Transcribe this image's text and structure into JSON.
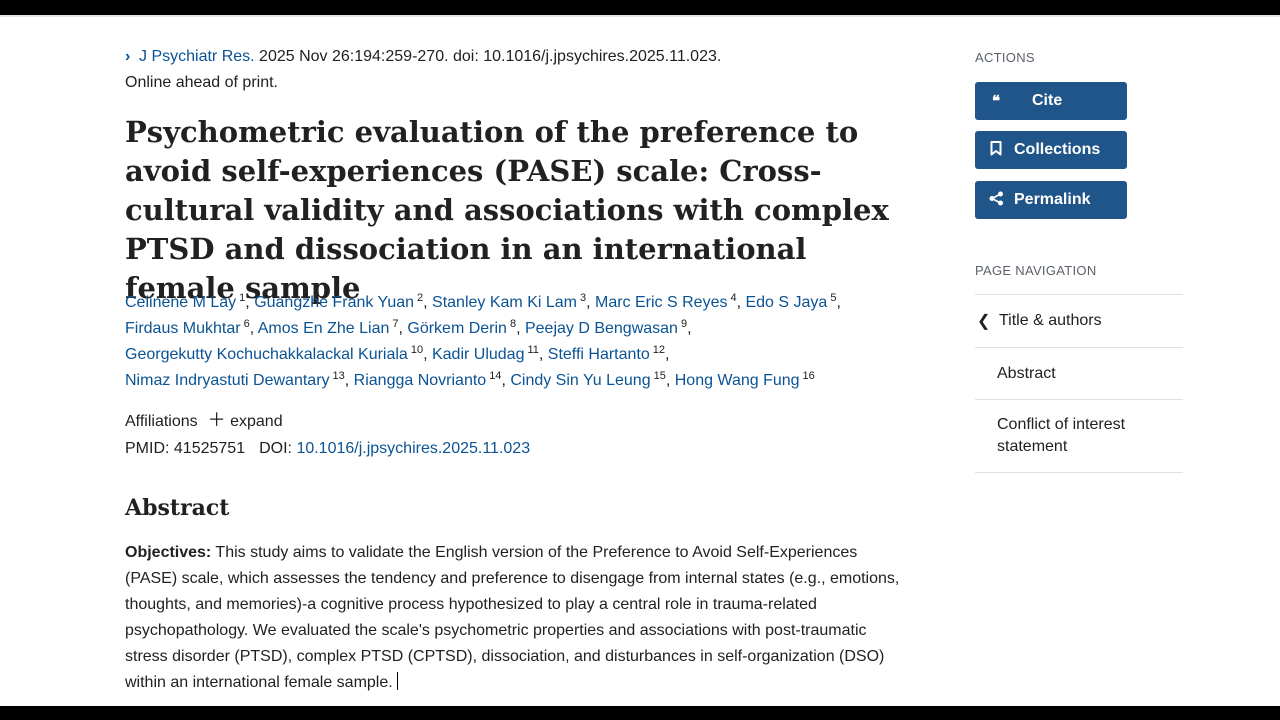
{
  "citation": {
    "journal": "J Psychiatr Res.",
    "details": "2025 Nov 26:194:259-270. doi: 10.1016/j.jpsychires.2025.11.023.",
    "status": "Online ahead of print."
  },
  "title": "Psychometric evaluation of the preference to avoid self-experiences (PASE) scale: Cross-cultural validity and associations with complex PTSD and dissociation in an international female sample",
  "authors": [
    {
      "name": "Celinene M Lay",
      "aff": "1"
    },
    {
      "name": "Guangzhe Frank Yuan",
      "aff": "2"
    },
    {
      "name": "Stanley Kam Ki Lam",
      "aff": "3"
    },
    {
      "name": "Marc Eric S Reyes",
      "aff": "4"
    },
    {
      "name": "Edo S Jaya",
      "aff": "5"
    },
    {
      "name": "Firdaus Mukhtar",
      "aff": "6"
    },
    {
      "name": "Amos En Zhe Lian",
      "aff": "7"
    },
    {
      "name": "Görkem Derin",
      "aff": "8"
    },
    {
      "name": "Peejay D Bengwasan",
      "aff": "9"
    },
    {
      "name": "Georgekutty Kochuchakkalackal Kuriala",
      "aff": "10"
    },
    {
      "name": "Kadir Uludag",
      "aff": "11"
    },
    {
      "name": "Steffi Hartanto",
      "aff": "12"
    },
    {
      "name": "Nimaz Indryastuti Dewantary",
      "aff": "13"
    },
    {
      "name": "Riangga Novrianto",
      "aff": "14"
    },
    {
      "name": "Cindy Sin Yu Leung",
      "aff": "15"
    },
    {
      "name": "Hong Wang Fung",
      "aff": "16"
    }
  ],
  "affiliations": {
    "label": "Affiliations",
    "expand": "expand"
  },
  "ids": {
    "pmid_label": "PMID:",
    "pmid": "41525751",
    "doi_label": "DOI:",
    "doi": "10.1016/j.jpsychires.2025.11.023"
  },
  "abstract": {
    "heading": "Abstract",
    "objectives_label": "Objectives:",
    "objectives_text": "This study aims to validate the English version of the Preference to Avoid Self-Experiences (PASE) scale, which assesses the tendency and preference to disengage from internal states (e.g., emotions, thoughts, and memories)-a cognitive process hypothesized to play a central role in trauma-related psychopathology. We evaluated the scale's psychometric properties and associations with post-traumatic stress disorder (PTSD), complex PTSD (CPTSD), dissociation, and disturbances in self-organization (DSO) within an international female sample."
  },
  "sidebar": {
    "actions_heading": "ACTIONS",
    "buttons": {
      "cite": "Cite",
      "collections": "Collections",
      "permalink": "Permalink"
    },
    "nav_heading": "PAGE NAVIGATION",
    "nav_items": [
      "Title & authors",
      "Abstract",
      "Conflict of interest statement"
    ]
  },
  "colors": {
    "link": "#0b5394",
    "button": "#20558a"
  }
}
